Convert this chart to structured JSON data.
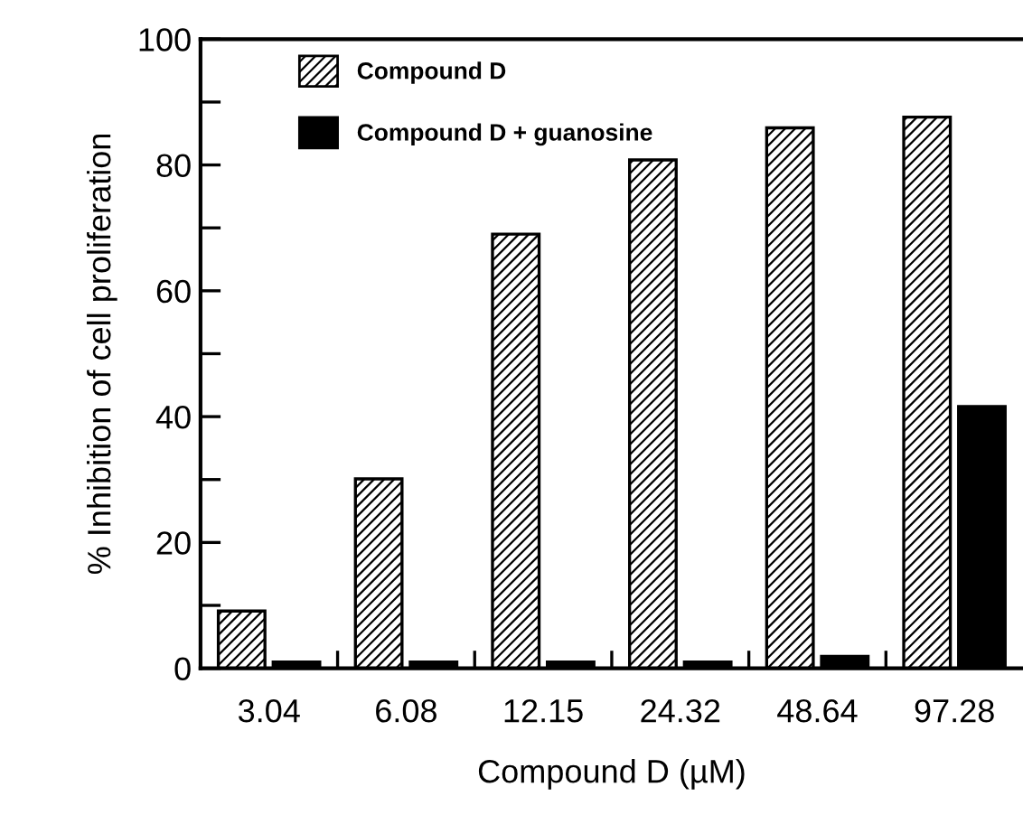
{
  "chart_data": {
    "type": "bar",
    "xlabel": "Compound D (µM)",
    "ylabel": "% Inhibition of cell proliferation",
    "categories": [
      "3.04",
      "6.08",
      "12.15",
      "24.32",
      "48.64",
      "97.28"
    ],
    "series": [
      {
        "name": "Compound D",
        "color": "#000000",
        "values": [
          9.1,
          30.1,
          69,
          80.8,
          85.9,
          87.6
        ]
      },
      {
        "name": "Compound D + guanosine",
        "color": "#000000",
        "values": [
          1,
          1,
          1,
          1,
          1.9,
          41.6
        ]
      }
    ],
    "ylim": [
      0,
      100
    ],
    "yticks": [
      0,
      {
        "value": 10,
        "label": null
      },
      20,
      {
        "value": 30,
        "label": null
      },
      40,
      {
        "value": 50,
        "label": null
      },
      60,
      {
        "value": 70,
        "label": null
      },
      80,
      {
        "value": 90,
        "label": null
      },
      100
    ],
    "grid": false,
    "legend": "top left"
  }
}
